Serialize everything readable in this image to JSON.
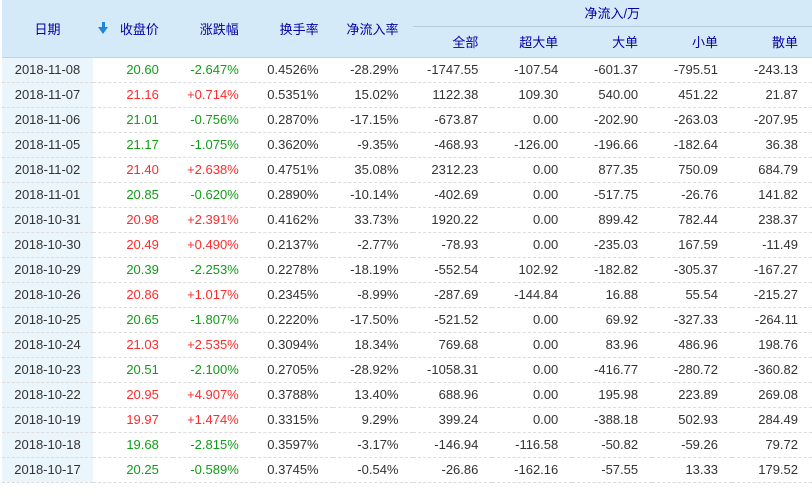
{
  "table": {
    "header": {
      "date": "日期",
      "sort_icon": "down-arrow",
      "cols": [
        "收盘价",
        "涨跌幅",
        "换手率",
        "净流入率"
      ],
      "group": "净流入/万",
      "group_cols": [
        "全部",
        "超大单",
        "大单",
        "小单",
        "散单"
      ]
    },
    "rows": [
      {
        "date": "2018-11-08",
        "close": "20.60",
        "close_dir": "down",
        "change": "-2.647%",
        "change_dir": "down",
        "turnover": "0.4526%",
        "inflow_rate": "-28.29%",
        "all": "-1747.55",
        "super_large": "-107.54",
        "large": "-601.37",
        "small": "-795.51",
        "retail": "-243.13"
      },
      {
        "date": "2018-11-07",
        "close": "21.16",
        "close_dir": "up",
        "change": "+0.714%",
        "change_dir": "up",
        "turnover": "0.5351%",
        "inflow_rate": "15.02%",
        "all": "1122.38",
        "super_large": "109.30",
        "large": "540.00",
        "small": "451.22",
        "retail": "21.87"
      },
      {
        "date": "2018-11-06",
        "close": "21.01",
        "close_dir": "down",
        "change": "-0.756%",
        "change_dir": "down",
        "turnover": "0.2870%",
        "inflow_rate": "-17.15%",
        "all": "-673.87",
        "super_large": "0.00",
        "large": "-202.90",
        "small": "-263.03",
        "retail": "-207.95"
      },
      {
        "date": "2018-11-05",
        "close": "21.17",
        "close_dir": "down",
        "change": "-1.075%",
        "change_dir": "down",
        "turnover": "0.3620%",
        "inflow_rate": "-9.35%",
        "all": "-468.93",
        "super_large": "-126.00",
        "large": "-196.66",
        "small": "-182.64",
        "retail": "36.38"
      },
      {
        "date": "2018-11-02",
        "close": "21.40",
        "close_dir": "up",
        "change": "+2.638%",
        "change_dir": "up",
        "turnover": "0.4751%",
        "inflow_rate": "35.08%",
        "all": "2312.23",
        "super_large": "0.00",
        "large": "877.35",
        "small": "750.09",
        "retail": "684.79"
      },
      {
        "date": "2018-11-01",
        "close": "20.85",
        "close_dir": "down",
        "change": "-0.620%",
        "change_dir": "down",
        "turnover": "0.2890%",
        "inflow_rate": "-10.14%",
        "all": "-402.69",
        "super_large": "0.00",
        "large": "-517.75",
        "small": "-26.76",
        "retail": "141.82"
      },
      {
        "date": "2018-10-31",
        "close": "20.98",
        "close_dir": "up",
        "change": "+2.391%",
        "change_dir": "up",
        "turnover": "0.4162%",
        "inflow_rate": "33.73%",
        "all": "1920.22",
        "super_large": "0.00",
        "large": "899.42",
        "small": "782.44",
        "retail": "238.37"
      },
      {
        "date": "2018-10-30",
        "close": "20.49",
        "close_dir": "up",
        "change": "+0.490%",
        "change_dir": "up",
        "turnover": "0.2137%",
        "inflow_rate": "-2.77%",
        "all": "-78.93",
        "super_large": "0.00",
        "large": "-235.03",
        "small": "167.59",
        "retail": "-11.49"
      },
      {
        "date": "2018-10-29",
        "close": "20.39",
        "close_dir": "down",
        "change": "-2.253%",
        "change_dir": "down",
        "turnover": "0.2278%",
        "inflow_rate": "-18.19%",
        "all": "-552.54",
        "super_large": "102.92",
        "large": "-182.82",
        "small": "-305.37",
        "retail": "-167.27"
      },
      {
        "date": "2018-10-26",
        "close": "20.86",
        "close_dir": "up",
        "change": "+1.017%",
        "change_dir": "up",
        "turnover": "0.2345%",
        "inflow_rate": "-8.99%",
        "all": "-287.69",
        "super_large": "-144.84",
        "large": "16.88",
        "small": "55.54",
        "retail": "-215.27"
      },
      {
        "date": "2018-10-25",
        "close": "20.65",
        "close_dir": "down",
        "change": "-1.807%",
        "change_dir": "down",
        "turnover": "0.2220%",
        "inflow_rate": "-17.50%",
        "all": "-521.52",
        "super_large": "0.00",
        "large": "69.92",
        "small": "-327.33",
        "retail": "-264.11"
      },
      {
        "date": "2018-10-24",
        "close": "21.03",
        "close_dir": "up",
        "change": "+2.535%",
        "change_dir": "up",
        "turnover": "0.3094%",
        "inflow_rate": "18.34%",
        "all": "769.68",
        "super_large": "0.00",
        "large": "83.96",
        "small": "486.96",
        "retail": "198.76"
      },
      {
        "date": "2018-10-23",
        "close": "20.51",
        "close_dir": "down",
        "change": "-2.100%",
        "change_dir": "down",
        "turnover": "0.2705%",
        "inflow_rate": "-28.92%",
        "all": "-1058.31",
        "super_large": "0.00",
        "large": "-416.77",
        "small": "-280.72",
        "retail": "-360.82"
      },
      {
        "date": "2018-10-22",
        "close": "20.95",
        "close_dir": "up",
        "change": "+4.907%",
        "change_dir": "up",
        "turnover": "0.3788%",
        "inflow_rate": "13.40%",
        "all": "688.96",
        "super_large": "0.00",
        "large": "195.98",
        "small": "223.89",
        "retail": "269.08"
      },
      {
        "date": "2018-10-19",
        "close": "19.97",
        "close_dir": "up",
        "change": "+1.474%",
        "change_dir": "up",
        "turnover": "0.3315%",
        "inflow_rate": "9.29%",
        "all": "399.24",
        "super_large": "0.00",
        "large": "-388.18",
        "small": "502.93",
        "retail": "284.49"
      },
      {
        "date": "2018-10-18",
        "close": "19.68",
        "close_dir": "down",
        "change": "-2.815%",
        "change_dir": "down",
        "turnover": "0.3597%",
        "inflow_rate": "-3.17%",
        "all": "-146.94",
        "super_large": "-116.58",
        "large": "-50.82",
        "small": "-59.26",
        "retail": "79.72"
      },
      {
        "date": "2018-10-17",
        "close": "20.25",
        "close_dir": "down",
        "change": "-0.589%",
        "change_dir": "down",
        "turnover": "0.3745%",
        "inflow_rate": "-0.54%",
        "all": "-26.86",
        "super_large": "-162.16",
        "large": "-57.55",
        "small": "13.33",
        "retail": "179.52"
      }
    ]
  },
  "colors": {
    "up": "#fd2b2b",
    "down": "#119c17",
    "header_text": "#0000a6",
    "header_bg": "#d5eaf8",
    "date_col_bg": "#eaf5fc",
    "sort_arrow": "#1e86d8"
  }
}
